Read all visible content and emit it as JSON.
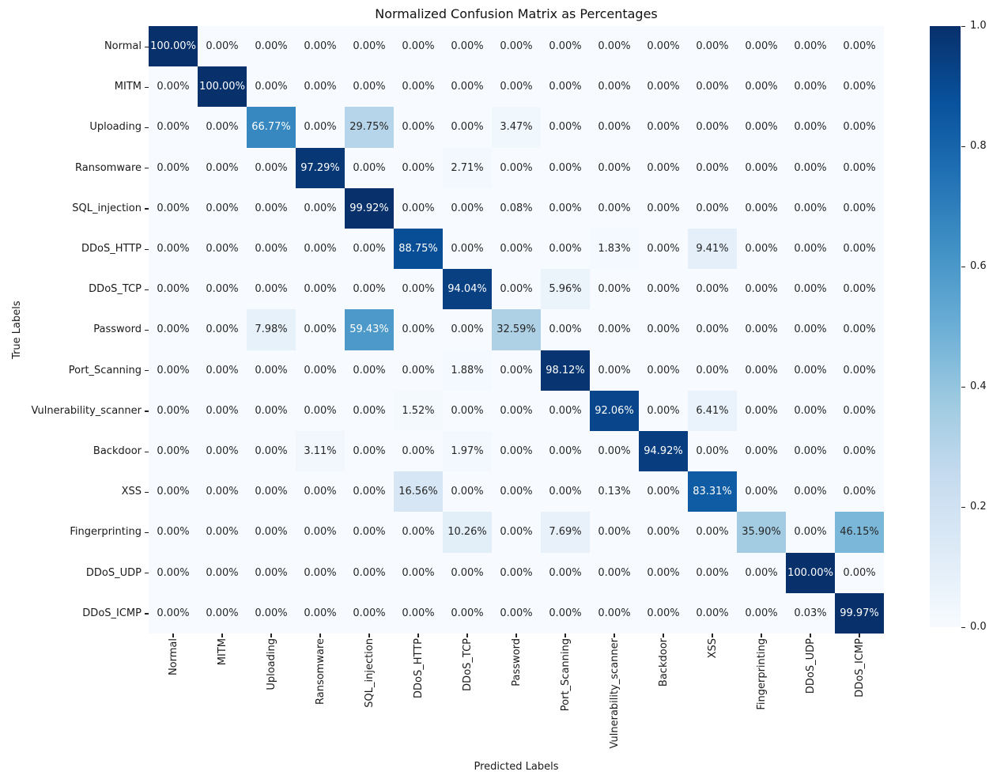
{
  "title": "Normalized Confusion Matrix as Percentages",
  "axes": {
    "xlabel": "Predicted Labels",
    "ylabel": "True Labels"
  },
  "chart_data": {
    "type": "heatmap",
    "title": "Normalized Confusion Matrix as Percentages",
    "xlabel": "Predicted Labels",
    "ylabel": "True Labels",
    "categories": [
      "Normal",
      "MITM",
      "Uploading",
      "Ransomware",
      "SQL_injection",
      "DDoS_HTTP",
      "DDoS_TCP",
      "Password",
      "Port_Scanning",
      "Vulnerability_scanner",
      "Backdoor",
      "XSS",
      "Fingerprinting",
      "DDoS_UDP",
      "DDoS_ICMP"
    ],
    "x_tick_labels": [
      "Normal",
      "MITM",
      "Uploading",
      "Ransomware",
      "SQL_injection",
      "DDoS_HTTP",
      "DDoS_TCP",
      "Password",
      "Port_Scanning",
      "Vulnerability_scanner",
      "Backdoor",
      "XSS",
      "Fingerprinting",
      "DDoS_UDP",
      "DDoS_ICMP"
    ],
    "y_tick_labels": [
      "Normal",
      "MITM",
      "Uploading",
      "Ransomware",
      "SQL_injection",
      "DDoS_HTTP",
      "DDoS_TCP",
      "Password",
      "Port_Scanning",
      "Vulnerability_scanner",
      "Backdoor",
      "XSS",
      "Fingerprinting",
      "DDoS_UDP",
      "DDoS_ICMP"
    ],
    "matrix_percent": [
      [
        100.0,
        0.0,
        0.0,
        0.0,
        0.0,
        0.0,
        0.0,
        0.0,
        0.0,
        0.0,
        0.0,
        0.0,
        0.0,
        0.0,
        0.0
      ],
      [
        0.0,
        100.0,
        0.0,
        0.0,
        0.0,
        0.0,
        0.0,
        0.0,
        0.0,
        0.0,
        0.0,
        0.0,
        0.0,
        0.0,
        0.0
      ],
      [
        0.0,
        0.0,
        66.77,
        0.0,
        29.75,
        0.0,
        0.0,
        3.47,
        0.0,
        0.0,
        0.0,
        0.0,
        0.0,
        0.0,
        0.0
      ],
      [
        0.0,
        0.0,
        0.0,
        97.29,
        0.0,
        0.0,
        2.71,
        0.0,
        0.0,
        0.0,
        0.0,
        0.0,
        0.0,
        0.0,
        0.0
      ],
      [
        0.0,
        0.0,
        0.0,
        0.0,
        99.92,
        0.0,
        0.0,
        0.08,
        0.0,
        0.0,
        0.0,
        0.0,
        0.0,
        0.0,
        0.0
      ],
      [
        0.0,
        0.0,
        0.0,
        0.0,
        0.0,
        88.75,
        0.0,
        0.0,
        0.0,
        1.83,
        0.0,
        9.41,
        0.0,
        0.0,
        0.0
      ],
      [
        0.0,
        0.0,
        0.0,
        0.0,
        0.0,
        0.0,
        94.04,
        0.0,
        5.96,
        0.0,
        0.0,
        0.0,
        0.0,
        0.0,
        0.0
      ],
      [
        0.0,
        0.0,
        7.98,
        0.0,
        59.43,
        0.0,
        0.0,
        32.59,
        0.0,
        0.0,
        0.0,
        0.0,
        0.0,
        0.0,
        0.0
      ],
      [
        0.0,
        0.0,
        0.0,
        0.0,
        0.0,
        0.0,
        1.88,
        0.0,
        98.12,
        0.0,
        0.0,
        0.0,
        0.0,
        0.0,
        0.0
      ],
      [
        0.0,
        0.0,
        0.0,
        0.0,
        0.0,
        1.52,
        0.0,
        0.0,
        0.0,
        92.06,
        0.0,
        6.41,
        0.0,
        0.0,
        0.0
      ],
      [
        0.0,
        0.0,
        0.0,
        3.11,
        0.0,
        0.0,
        1.97,
        0.0,
        0.0,
        0.0,
        94.92,
        0.0,
        0.0,
        0.0,
        0.0
      ],
      [
        0.0,
        0.0,
        0.0,
        0.0,
        0.0,
        16.56,
        0.0,
        0.0,
        0.0,
        0.13,
        0.0,
        83.31,
        0.0,
        0.0,
        0.0
      ],
      [
        0.0,
        0.0,
        0.0,
        0.0,
        0.0,
        0.0,
        10.26,
        0.0,
        7.69,
        0.0,
        0.0,
        0.0,
        35.9,
        0.0,
        46.15
      ],
      [
        0.0,
        0.0,
        0.0,
        0.0,
        0.0,
        0.0,
        0.0,
        0.0,
        0.0,
        0.0,
        0.0,
        0.0,
        0.0,
        100.0,
        0.0
      ],
      [
        0.0,
        0.0,
        0.0,
        0.0,
        0.0,
        0.0,
        0.0,
        0.0,
        0.0,
        0.0,
        0.0,
        0.0,
        0.0,
        0.03,
        99.97
      ]
    ],
    "cell_label_suffix": "%",
    "cell_label_decimals": 2,
    "colormap": "Blues",
    "colormap_anchors": [
      "#f7fbff",
      "#deebf7",
      "#c6dbef",
      "#9ecae1",
      "#6baed6",
      "#4292c6",
      "#2171b5",
      "#08519c",
      "#08306b"
    ],
    "colorbar": {
      "min": 0.0,
      "max": 1.0,
      "ticks": [
        0.0,
        0.2,
        0.4,
        0.6,
        0.8,
        1.0
      ],
      "tick_decimals": 1,
      "position": "right"
    },
    "annotation_colors": {
      "dark": "#262626",
      "light": "#ffffff"
    },
    "grid": false,
    "legend": false
  }
}
